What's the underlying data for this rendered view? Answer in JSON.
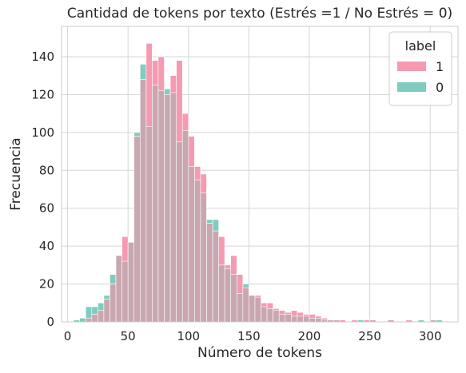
{
  "chart_data": {
    "type": "bar",
    "title": "Cantidad de tokens por texto (Estrés =1 / No Estrés = 0)",
    "xlabel": "Número de tokens",
    "ylabel": "Frecuencia",
    "xlim": [
      -5,
      323
    ],
    "ylim": [
      0,
      156
    ],
    "xticks": [
      0,
      50,
      100,
      150,
      200,
      250,
      300
    ],
    "yticks": [
      0,
      20,
      40,
      60,
      80,
      100,
      120,
      140
    ],
    "grid": true,
    "legend": {
      "title": "label",
      "position": "top-right"
    },
    "bin_width": 5,
    "bin_starts": [
      5,
      10,
      15,
      20,
      25,
      30,
      35,
      40,
      45,
      50,
      55,
      60,
      65,
      70,
      75,
      80,
      85,
      90,
      95,
      100,
      105,
      110,
      115,
      120,
      125,
      130,
      135,
      140,
      145,
      150,
      155,
      160,
      165,
      170,
      175,
      180,
      185,
      190,
      195,
      200,
      205,
      210,
      215,
      220,
      225,
      230,
      235,
      240,
      245,
      250,
      255,
      260,
      265,
      270,
      275,
      280,
      285,
      290,
      295,
      300,
      305
    ],
    "series": [
      {
        "name": "1",
        "color": "#f59ab1",
        "values": [
          0,
          0,
          2,
          4,
          6,
          12,
          20,
          35,
          45,
          42,
          98,
          128,
          147,
          138,
          140,
          120,
          130,
          138,
          110,
          98,
          82,
          78,
          52,
          48,
          45,
          30,
          35,
          25,
          18,
          14,
          14,
          10,
          10,
          7,
          6,
          5,
          6,
          5,
          4,
          4,
          3,
          2,
          1,
          1,
          1,
          0,
          1,
          0,
          1,
          1,
          0,
          0,
          1,
          0,
          0,
          1,
          0,
          0,
          0,
          1,
          0
        ]
      },
      {
        "name": "0",
        "color": "#7fcdbf",
        "values": [
          1,
          2,
          8,
          8,
          10,
          14,
          25,
          35,
          32,
          42,
          100,
          136,
          103,
          125,
          122,
          123,
          121,
          95,
          101,
          82,
          75,
          68,
          54,
          54,
          30,
          28,
          25,
          15,
          20,
          14,
          13,
          8,
          7,
          6,
          4,
          4,
          3,
          3,
          3,
          2,
          2,
          1,
          1,
          1,
          0,
          0,
          0,
          1,
          0,
          1,
          0,
          0,
          1,
          0,
          0,
          0,
          0,
          1,
          0,
          1,
          1
        ]
      }
    ]
  }
}
